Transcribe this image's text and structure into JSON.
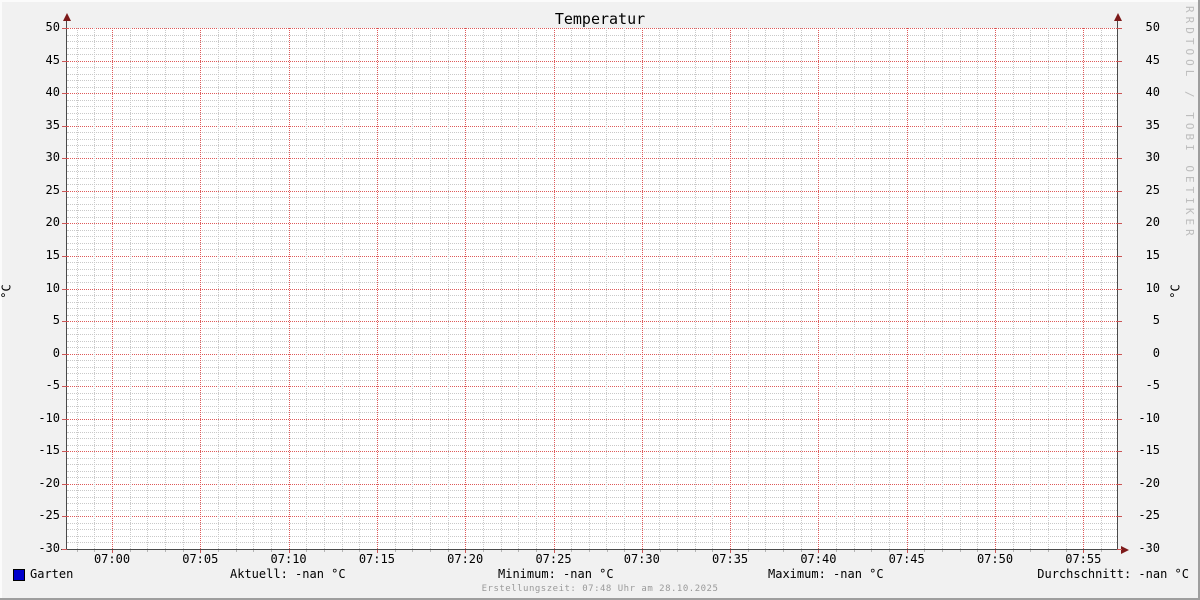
{
  "colors": {
    "background": "#f1f1f1",
    "canvas": "#ffffff",
    "major_grid": "#de5a5a",
    "minor_grid": "#c9c9c9",
    "axis": "#4a4a4a",
    "arrow": "#7d1a1a",
    "series": "#0000cc",
    "watermark_text": "#bdbdbd"
  },
  "watermark": "RRDTOOL / TOBI OETIKER",
  "chart_data": {
    "type": "line",
    "title": "Temperatur",
    "ylabel": "°C",
    "xlabel": "",
    "ylim": [
      -30,
      50
    ],
    "y_tick_step": 5,
    "y_ticks": [
      50,
      45,
      40,
      35,
      30,
      25,
      20,
      15,
      10,
      5,
      0,
      -5,
      -10,
      -15,
      -20,
      -25,
      -30
    ],
    "x_ticks": [
      "07:00",
      "07:05",
      "07:10",
      "07:15",
      "07:20",
      "07:25",
      "07:30",
      "07:35",
      "07:40",
      "07:45",
      "07:50",
      "07:55"
    ],
    "x_minor_per_major": 5,
    "grid": true,
    "legend_position": "bottom",
    "series": [
      {
        "name": "Garten",
        "color": "#0000cc",
        "values": []
      }
    ],
    "stats": {
      "aktuell": "-nan °C",
      "minimum": "-nan °C",
      "maximum": "-nan °C",
      "durchschnitt": "-nan °C"
    }
  },
  "legend": {
    "series_label": "Garten",
    "series_color": "#0000cc",
    "stats": [
      {
        "text": "Aktuell: -nan °C"
      },
      {
        "text": "Minimum: -nan °C"
      },
      {
        "text": "Maximum: -nan °C"
      },
      {
        "text": "Durchschnitt: -nan °C"
      }
    ]
  },
  "footer": {
    "creation_line": "Erstellungszeit: 07:48 Uhr am 28.10.2025"
  }
}
